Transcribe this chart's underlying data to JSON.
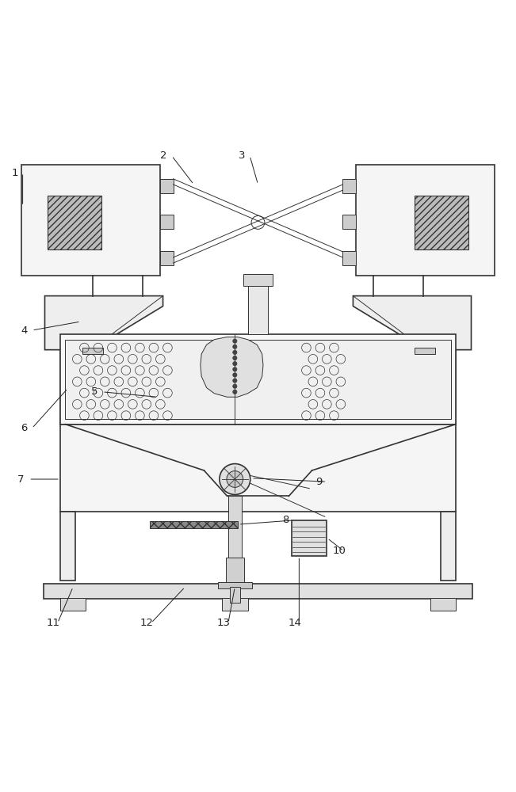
{
  "bg_color": "#ffffff",
  "line_color": "#333333",
  "label_color": "#222222",
  "fig_width": 6.51,
  "fig_height": 10.0
}
